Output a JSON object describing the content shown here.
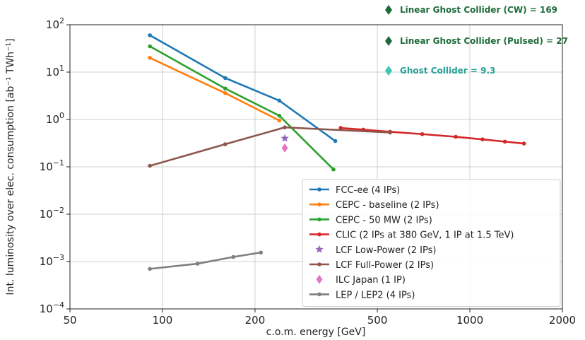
{
  "chart_data": {
    "type": "line",
    "xscale": "log",
    "yscale": "log",
    "xlim": [
      50,
      2000
    ],
    "ylim": [
      0.0001,
      100
    ],
    "xlabel": "c.o.m. energy [GeV]",
    "ylabel": "Int. luminosity over elec. consumption [ab⁻¹ TWh⁻¹]",
    "grid": true,
    "legend_position": "lower-right",
    "x_ticks": [
      {
        "value": 50,
        "label": "50"
      },
      {
        "value": 100,
        "label": "100"
      },
      {
        "value": 200,
        "label": "200"
      },
      {
        "value": 500,
        "label": "500"
      },
      {
        "value": 1000,
        "label": "1000"
      },
      {
        "value": 2000,
        "label": "2000"
      }
    ],
    "y_ticks": [
      {
        "value": 0.0001,
        "base": "10",
        "exp": "−4"
      },
      {
        "value": 0.001,
        "base": "10",
        "exp": "−3"
      },
      {
        "value": 0.01,
        "base": "10",
        "exp": "−2"
      },
      {
        "value": 0.1,
        "base": "10",
        "exp": "−1"
      },
      {
        "value": 1,
        "base": "10",
        "exp": "0"
      },
      {
        "value": 10,
        "base": "10",
        "exp": "1"
      },
      {
        "value": 100,
        "base": "10",
        "exp": "2"
      }
    ],
    "series": [
      {
        "name": "FCC-ee (4 IPs)",
        "color": "#1f77b4",
        "marker": "dot",
        "x": [
          91,
          160,
          240,
          365
        ],
        "y": [
          60,
          7.5,
          2.5,
          0.35
        ]
      },
      {
        "name": "CEPC - baseline (2 IPs)",
        "color": "#ff7f0e",
        "marker": "dot",
        "x": [
          91,
          160,
          240
        ],
        "y": [
          20,
          3.6,
          0.95
        ]
      },
      {
        "name": "CEPC - 50 MW (2 IPs)",
        "color": "#2ca02c",
        "marker": "dot",
        "x": [
          91,
          160,
          240,
          360
        ],
        "y": [
          35,
          4.5,
          1.2,
          0.088
        ]
      },
      {
        "name": "CLIC (2 IPs at 380 GeV, 1 IP at 1.5 TeV)",
        "color": "#d62728",
        "marker": "dot",
        "x": [
          380,
          450,
          550,
          700,
          900,
          1100,
          1300,
          1500
        ],
        "y": [
          0.66,
          0.61,
          0.55,
          0.49,
          0.43,
          0.38,
          0.34,
          0.31
        ]
      },
      {
        "name": "LCF Low-Power (2 IPs)",
        "color": "#9467bd",
        "marker": "star",
        "x": [
          250
        ],
        "y": [
          0.4
        ]
      },
      {
        "name": "LCF Full-Power (2 IPs)",
        "color": "#8c564b",
        "marker": "dot",
        "x": [
          91,
          160,
          250,
          550
        ],
        "y": [
          0.105,
          0.3,
          0.68,
          0.53
        ]
      },
      {
        "name": "ILC Japan (1 IP)",
        "color": "#e377c2",
        "marker": "diamond",
        "x": [
          250
        ],
        "y": [
          0.25
        ]
      },
      {
        "name": "LEP / LEP2 (4 IPs)",
        "color": "#7f7f7f",
        "marker": "dot",
        "x": [
          91,
          130,
          170,
          209
        ],
        "y": [
          0.0007,
          0.0009,
          0.00125,
          0.00155
        ]
      }
    ],
    "annotations": [
      {
        "text": "Linear Ghost Collider (CW) = 169",
        "color": "#1e6b3a",
        "marker_color": "#1e6b3a"
      },
      {
        "text": "Linear Ghost Collider (Pulsed) = 27",
        "color": "#1e6b3a",
        "marker_color": "#1e6b3a"
      },
      {
        "text": "Ghost Collider = 9.3",
        "color": "#2aa198",
        "marker_color": "#3cc8b4"
      }
    ]
  }
}
